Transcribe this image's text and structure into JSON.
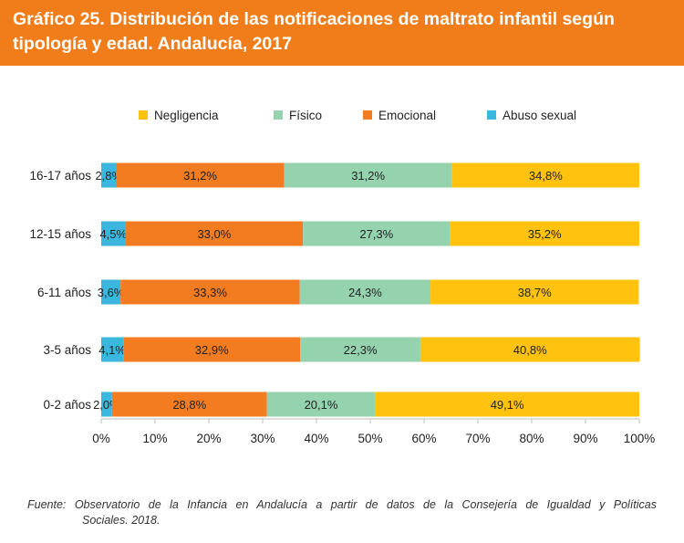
{
  "header": {
    "title": "Gráfico 25. Distribución de las notificaciones de maltrato infantil según tipología y edad. Andalucía, 2017"
  },
  "source": {
    "line1": "Fuente: Observatorio de la Infancia en Andalucía a partir de datos de la Consejería de Igualdad y Políticas",
    "line2": "Sociales. 2018."
  },
  "colors": {
    "header": "#f07d1a",
    "abuso": "#3ab7df",
    "emocional": "#f47c20",
    "fisico": "#94d3ae",
    "negligencia": "#ffc20e"
  },
  "chart_data": {
    "type": "bar",
    "orientation": "horizontal",
    "stacked": true,
    "categories": [
      "16-17 años",
      "12-15 años",
      "6-11 años",
      "3-5 años",
      "0-2 años"
    ],
    "legend_order": [
      "Negligencia",
      "Físico",
      "Emocional",
      "Abuso sexual"
    ],
    "legend_placement": "top",
    "series": [
      {
        "name": "Abuso sexual",
        "color": "#3ab7df",
        "values": [
          2.8,
          4.5,
          3.6,
          4.1,
          2.0
        ],
        "labels": [
          "2,8%",
          "4,5%",
          "3,6%",
          "4,1%",
          "2,0%"
        ]
      },
      {
        "name": "Emocional",
        "color": "#f47c20",
        "values": [
          31.2,
          33.0,
          33.3,
          32.9,
          28.8
        ],
        "labels": [
          "31,2%",
          "33,0%",
          "33,3%",
          "32,9%",
          "28,8%"
        ]
      },
      {
        "name": "Físico",
        "color": "#94d3ae",
        "values": [
          31.2,
          27.3,
          24.3,
          22.3,
          20.1
        ],
        "labels": [
          "31,2%",
          "27,3%",
          "24,3%",
          "22,3%",
          "20,1%"
        ]
      },
      {
        "name": "Negligencia",
        "color": "#ffc20e",
        "values": [
          34.8,
          35.2,
          38.7,
          40.8,
          49.1
        ],
        "labels": [
          "34,8%",
          "35,2%",
          "38,7%",
          "40,8%",
          "49,1%"
        ]
      }
    ],
    "xlim": [
      0,
      100
    ],
    "xticks": [
      "0%",
      "10%",
      "20%",
      "30%",
      "40%",
      "50%",
      "60%",
      "70%",
      "80%",
      "90%",
      "100%"
    ],
    "grid": false
  }
}
